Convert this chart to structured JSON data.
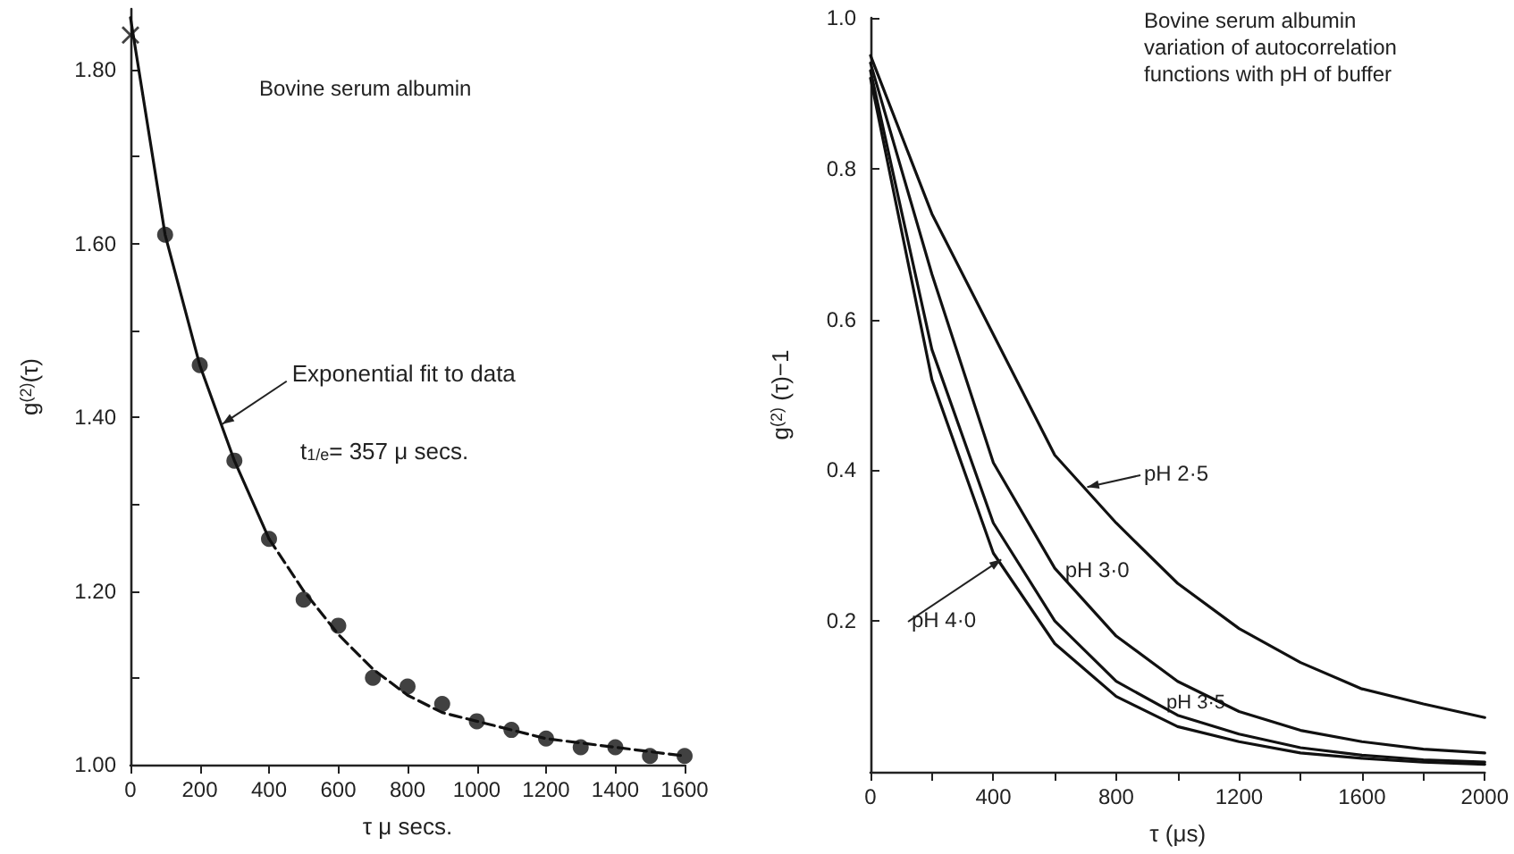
{
  "chart_data": [
    {
      "type": "scatter",
      "title": "Bovine serum albumin",
      "xlabel": "τ μ secs.",
      "ylabel": "g$^{(2)}$(τ)",
      "annotations": [
        {
          "text": "Exponential fit to data",
          "x": 260,
          "y": 1.39
        },
        "t$_{1/e}$= 357 μ secs."
      ],
      "xlim": [
        0,
        1600
      ],
      "xticks": [
        0,
        200,
        400,
        600,
        800,
        1000,
        1200,
        1400,
        1600
      ],
      "ylim": [
        1.0,
        1.87
      ],
      "yticks": [
        {
          "value": 1.0,
          "label": "1.00"
        },
        {
          "value": 1.1,
          "label": null
        },
        {
          "value": 1.2,
          "label": "1.20"
        },
        {
          "value": 1.3,
          "label": null
        },
        {
          "value": 1.4,
          "label": "1.40"
        },
        {
          "value": 1.5,
          "label": null
        },
        {
          "value": 1.6,
          "label": "1.60"
        },
        {
          "value": 1.7,
          "label": null
        },
        {
          "value": 1.8,
          "label": "1.80"
        }
      ],
      "series": [
        {
          "type": "line",
          "color": "#111111",
          "line_style": "solid",
          "x": [
            0,
            100,
            200,
            300,
            400
          ],
          "values": [
            1.86,
            1.61,
            1.46,
            1.35,
            1.26
          ]
        },
        {
          "type": "line",
          "color": "#111111",
          "line_style": "dashed",
          "x": [
            400,
            500,
            600,
            700,
            800,
            900,
            1000,
            1200,
            1400,
            1600
          ],
          "values": [
            1.26,
            1.2,
            1.15,
            1.11,
            1.08,
            1.06,
            1.05,
            1.03,
            1.02,
            1.01
          ]
        },
        {
          "color": "#111111",
          "marker": "circle",
          "x": [
            100,
            200,
            300,
            400,
            500,
            600,
            700,
            800,
            900,
            1000,
            1100,
            1200,
            1300,
            1400,
            1500,
            1600
          ],
          "values": [
            1.61,
            1.46,
            1.35,
            1.26,
            1.19,
            1.16,
            1.1,
            1.09,
            1.07,
            1.05,
            1.04,
            1.03,
            1.02,
            1.02,
            1.01,
            1.01
          ]
        },
        {
          "color": "#111111",
          "marker": "cross",
          "x": [
            0
          ],
          "values": [
            1.84
          ]
        }
      ]
    },
    {
      "type": "line",
      "title": "Bovine serum albumin\nvariation of autocorrelation\nfunctions with pH of buffer",
      "xlabel": "τ (μs)",
      "ylabel": "g$^{(2)}$ (τ)−1",
      "xlim": [
        0,
        2000
      ],
      "xticks": [
        0,
        {
          "value": 200,
          "label": null
        },
        400,
        {
          "value": 600,
          "label": null
        },
        800,
        {
          "value": 1000,
          "label": null
        },
        1200,
        {
          "value": 1400,
          "label": null
        },
        1600,
        {
          "value": 1800,
          "label": null
        },
        2000
      ],
      "ylim": [
        0,
        1.0
      ],
      "yticks": [
        0.2,
        0.4,
        0.6,
        0.8,
        {
          "value": 1.0,
          "label": "1.0"
        }
      ],
      "x": [
        0,
        200,
        400,
        600,
        800,
        1000,
        1200,
        1400,
        1600,
        1800,
        2000
      ],
      "series": [
        {
          "name": "pH 3·0",
          "color": "#111111",
          "values": [
            0.94,
            0.66,
            0.41,
            0.27,
            0.18,
            0.12,
            0.08,
            0.055,
            0.04,
            0.03,
            0.025
          ]
        },
        {
          "name": "pH 2·5",
          "color": "#111111",
          "values": [
            0.95,
            0.74,
            0.58,
            0.42,
            0.33,
            0.25,
            0.19,
            0.145,
            0.11,
            0.09,
            0.072
          ]
        },
        {
          "name": "pH 4·0",
          "color": "#111111",
          "values": [
            0.92,
            0.52,
            0.29,
            0.17,
            0.1,
            0.06,
            0.04,
            0.025,
            0.018,
            0.013,
            0.01
          ]
        },
        {
          "name": "pH 3·5",
          "color": "#111111",
          "values": [
            0.93,
            0.56,
            0.33,
            0.2,
            0.12,
            0.075,
            0.05,
            0.032,
            0.022,
            0.016,
            0.013
          ]
        }
      ]
    }
  ]
}
